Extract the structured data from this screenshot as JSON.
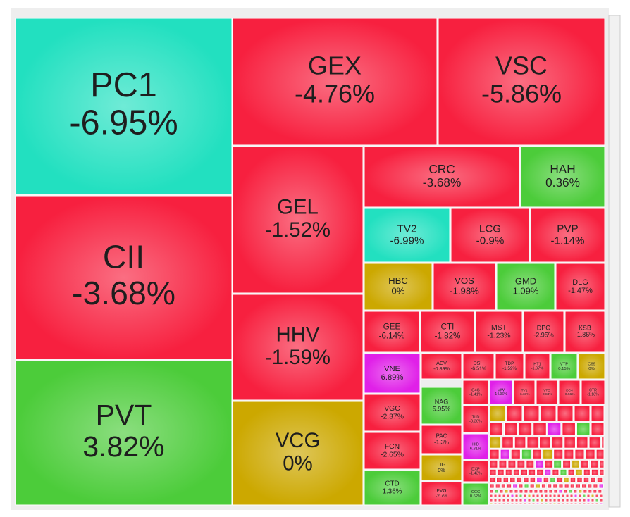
{
  "chart_data": {
    "type": "treemap",
    "categories": [
      "PC1",
      "CII",
      "PVT",
      "GEX",
      "VSC",
      "GEL",
      "HHV",
      "VCG",
      "CRC",
      "HAH",
      "TV2",
      "LCG",
      "PVP",
      "HBC",
      "VOS",
      "GMD",
      "DLG",
      "GEE",
      "CTI",
      "MST",
      "DPG",
      "KSB",
      "VNE",
      "ACV",
      "DSH",
      "TDP",
      "HT1",
      "VTP",
      "C69",
      "VGC",
      "NAG",
      "FCN",
      "CTD",
      "C4G",
      "VIW",
      "TV1",
      "VTO",
      "DC4",
      "CTR",
      "PAC",
      "LIG",
      "EVG",
      "TLD",
      "HID",
      "DXP",
      "CCC"
    ],
    "values": [
      -6.95,
      -3.68,
      3.82,
      -4.76,
      -5.86,
      -1.52,
      -1.59,
      0,
      -3.68,
      0.36,
      -6.99,
      -0.9,
      -1.14,
      0,
      -1.98,
      1.09,
      -1.47,
      -6.14,
      -1.82,
      -1.23,
      -2.95,
      -1.86,
      6.89,
      -0.89,
      -6.51,
      -1.59,
      -1.97,
      0.15,
      0,
      -2.37,
      5.95,
      -2.65,
      1.36,
      -1.41,
      14.96,
      -6.33,
      -0.84,
      -0.56,
      -1.18,
      -1.3,
      0,
      -2.7,
      -0.36,
      6.81,
      -1.43,
      0.62
    ],
    "value_labels": [
      "-6.95%",
      "-3.68%",
      "3.82%",
      "-4.76%",
      "-5.86%",
      "-1.52%",
      "-1.59%",
      "0%",
      "-3.68%",
      "0.36%",
      "-6.99%",
      "-0.9%",
      "-1.14%",
      "0%",
      "-1.98%",
      "1.09%",
      "-1.47%",
      "-6.14%",
      "-1.82%",
      "-1.23%",
      "-2.95%",
      "-1.86%",
      "6.89%",
      "-0.89%",
      "-6.51%",
      "-1.59%",
      "-1.97%",
      "0.15%",
      "0%",
      "-2.37%",
      "5.95%",
      "-2.65%",
      "1.36%",
      "-1.41%",
      "14.96%",
      "-6.33%",
      "-0.84%",
      "-0.56%",
      "-1.18%",
      "-1.3%",
      "0%",
      "-2.7%",
      "-0.36%",
      "6.81%",
      "-1.43%",
      "0.62%"
    ],
    "colors": [
      "#22e0c0",
      "#f7203f",
      "#4ccc3a",
      "#f7203f",
      "#f7203f",
      "#f7203f",
      "#f7203f",
      "#cca800",
      "#f7203f",
      "#4ccc3a",
      "#22e0c0",
      "#f7203f",
      "#f7203f",
      "#cca800",
      "#f7203f",
      "#4ccc3a",
      "#f7203f",
      "#f7203f",
      "#f7203f",
      "#f7203f",
      "#f7203f",
      "#f7203f",
      "#e020e8",
      "#f7203f",
      "#f7203f",
      "#f7203f",
      "#f7203f",
      "#4ccc3a",
      "#cca800",
      "#f7203f",
      "#4ccc3a",
      "#f7203f",
      "#4ccc3a",
      "#f7203f",
      "#e020e8",
      "#f7203f",
      "#f7203f",
      "#f7203f",
      "#f7203f",
      "#f7203f",
      "#cca800",
      "#f7203f",
      "#f7203f",
      "#e020e8",
      "#f7203f",
      "#4ccc3a"
    ]
  }
}
